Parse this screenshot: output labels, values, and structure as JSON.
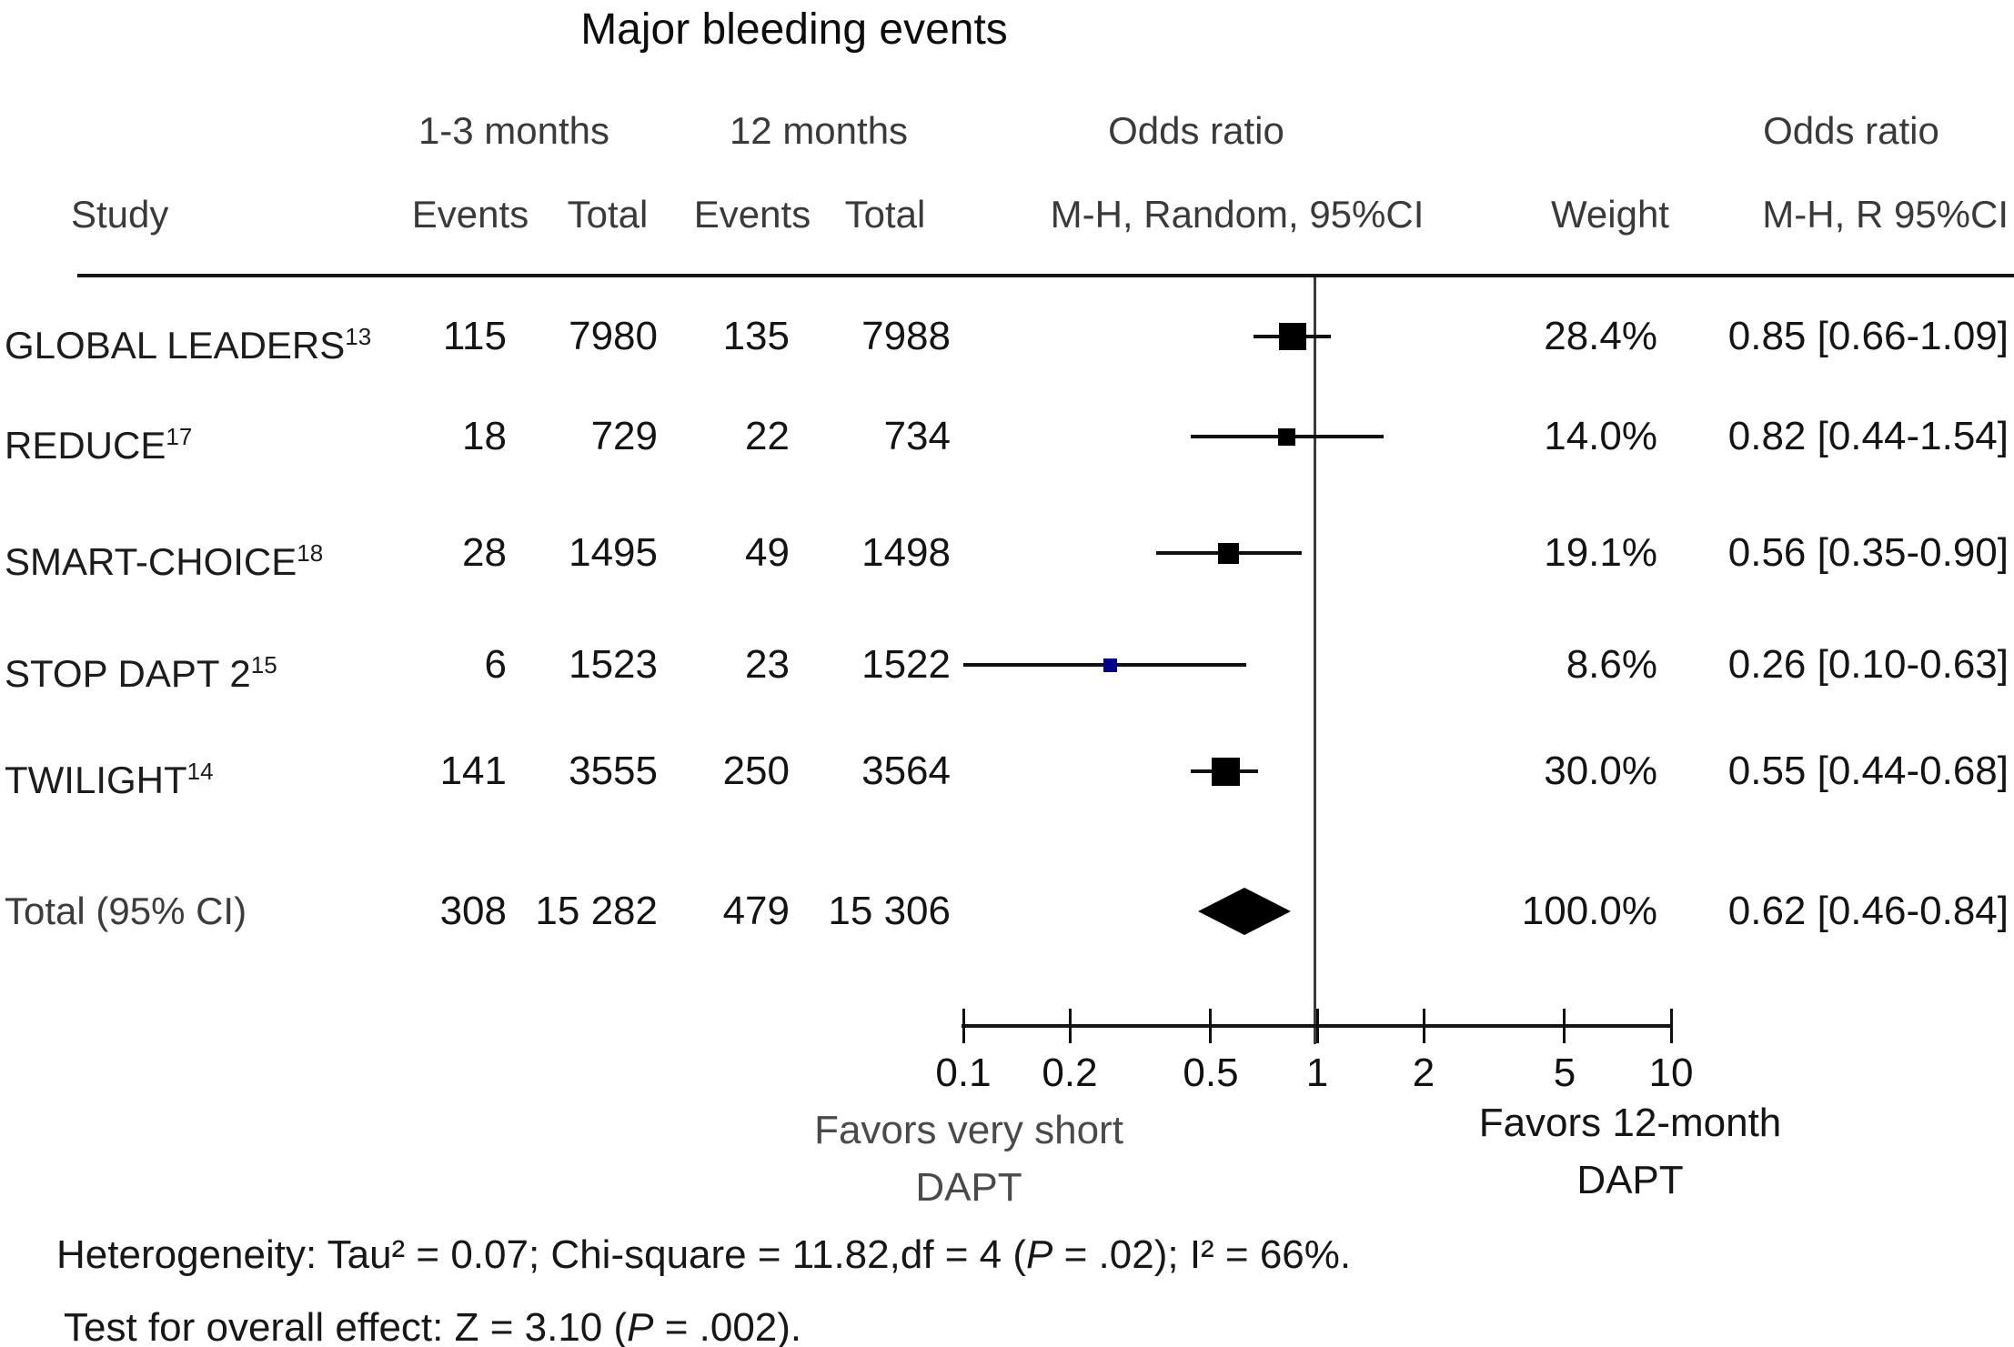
{
  "title": "Major bleeding events",
  "header": {
    "group_short": "1-3 months",
    "group_long": "12 months",
    "odds_ratio_plot": "Odds ratio",
    "odds_ratio_col": "Odds ratio",
    "study": "Study",
    "events_1": "Events",
    "total_1": "Total",
    "events_2": "Events",
    "total_2": "Total",
    "mh_random": "M-H, Random, 95%CI",
    "weight": "Weight",
    "mh_r": "M-H, R 95%CI"
  },
  "chart_data": {
    "type": "forest",
    "x_scale": "log10",
    "x_axis_range": [
      0.1,
      10
    ],
    "x_ticks": [
      0.1,
      0.2,
      0.5,
      1,
      2,
      5,
      10
    ],
    "x_tick_labels": [
      "0.1",
      "0.2",
      "0.5",
      "1",
      "2",
      "5",
      "10"
    ],
    "null_value": 1,
    "studies": [
      {
        "study": "GLOBAL LEADERS",
        "ref": "13",
        "events_short": "115",
        "total_short": "7980",
        "events_12m": "135",
        "total_12m": "7988",
        "weight_pct": 28.4,
        "weight": "28.4%",
        "or": 0.85,
        "ci_low": 0.66,
        "ci_high": 1.09,
        "or_ci": "0.85 [0.66-1.09]",
        "marker_color": "#000000"
      },
      {
        "study": "REDUCE",
        "ref": "17",
        "events_short": "18",
        "total_short": "729",
        "events_12m": "22",
        "total_12m": "734",
        "weight_pct": 14.0,
        "weight": "14.0%",
        "or": 0.82,
        "ci_low": 0.44,
        "ci_high": 1.54,
        "or_ci": "0.82 [0.44-1.54]",
        "marker_color": "#000000"
      },
      {
        "study": "SMART-CHOICE",
        "ref": "18",
        "events_short": "28",
        "total_short": "1495",
        "events_12m": "49",
        "total_12m": "1498",
        "weight_pct": 19.1,
        "weight": "19.1%",
        "or": 0.56,
        "ci_low": 0.35,
        "ci_high": 0.9,
        "or_ci": "0.56 [0.35-0.90]",
        "marker_color": "#000000"
      },
      {
        "study": "STOP DAPT 2",
        "ref": "15",
        "events_short": "6",
        "total_short": "1523",
        "events_12m": "23",
        "total_12m": "1522",
        "weight_pct": 8.6,
        "weight": "8.6%",
        "or": 0.26,
        "ci_low": 0.1,
        "ci_high": 0.63,
        "or_ci": "0.26 [0.10-0.63]",
        "marker_color": "#00008b"
      },
      {
        "study": "TWILIGHT",
        "ref": "14",
        "events_short": "141",
        "total_short": "3555",
        "events_12m": "250",
        "total_12m": "3564",
        "weight_pct": 30.0,
        "weight": "30.0%",
        "or": 0.55,
        "ci_low": 0.44,
        "ci_high": 0.68,
        "or_ci": "0.55 [0.44-0.68]",
        "marker_color": "#000000"
      }
    ],
    "total": {
      "label": "Total (95% CI)",
      "events_short": "308",
      "total_short": "15 282",
      "events_12m": "479",
      "total_12m": "15 306",
      "weight": "100.0%",
      "or": 0.62,
      "ci_low": 0.46,
      "ci_high": 0.84,
      "or_ci": "0.62 [0.46-0.84]"
    },
    "favors_left_line1": "Favors very short",
    "favors_left_line2": "DAPT",
    "favors_right_line1": "Favors 12-month",
    "favors_right_line2": "DAPT"
  },
  "footnotes": {
    "het_pre": "Heterogeneity: Tau² = 0.07; Chi-square = 11.82,df = 4 (",
    "het_p": "P",
    "het_post": " = .02); I² = 66%.",
    "eff_pre": "Test for overall effect: Z = 3.10 (",
    "eff_p": "P",
    "eff_post": " = .002)."
  }
}
